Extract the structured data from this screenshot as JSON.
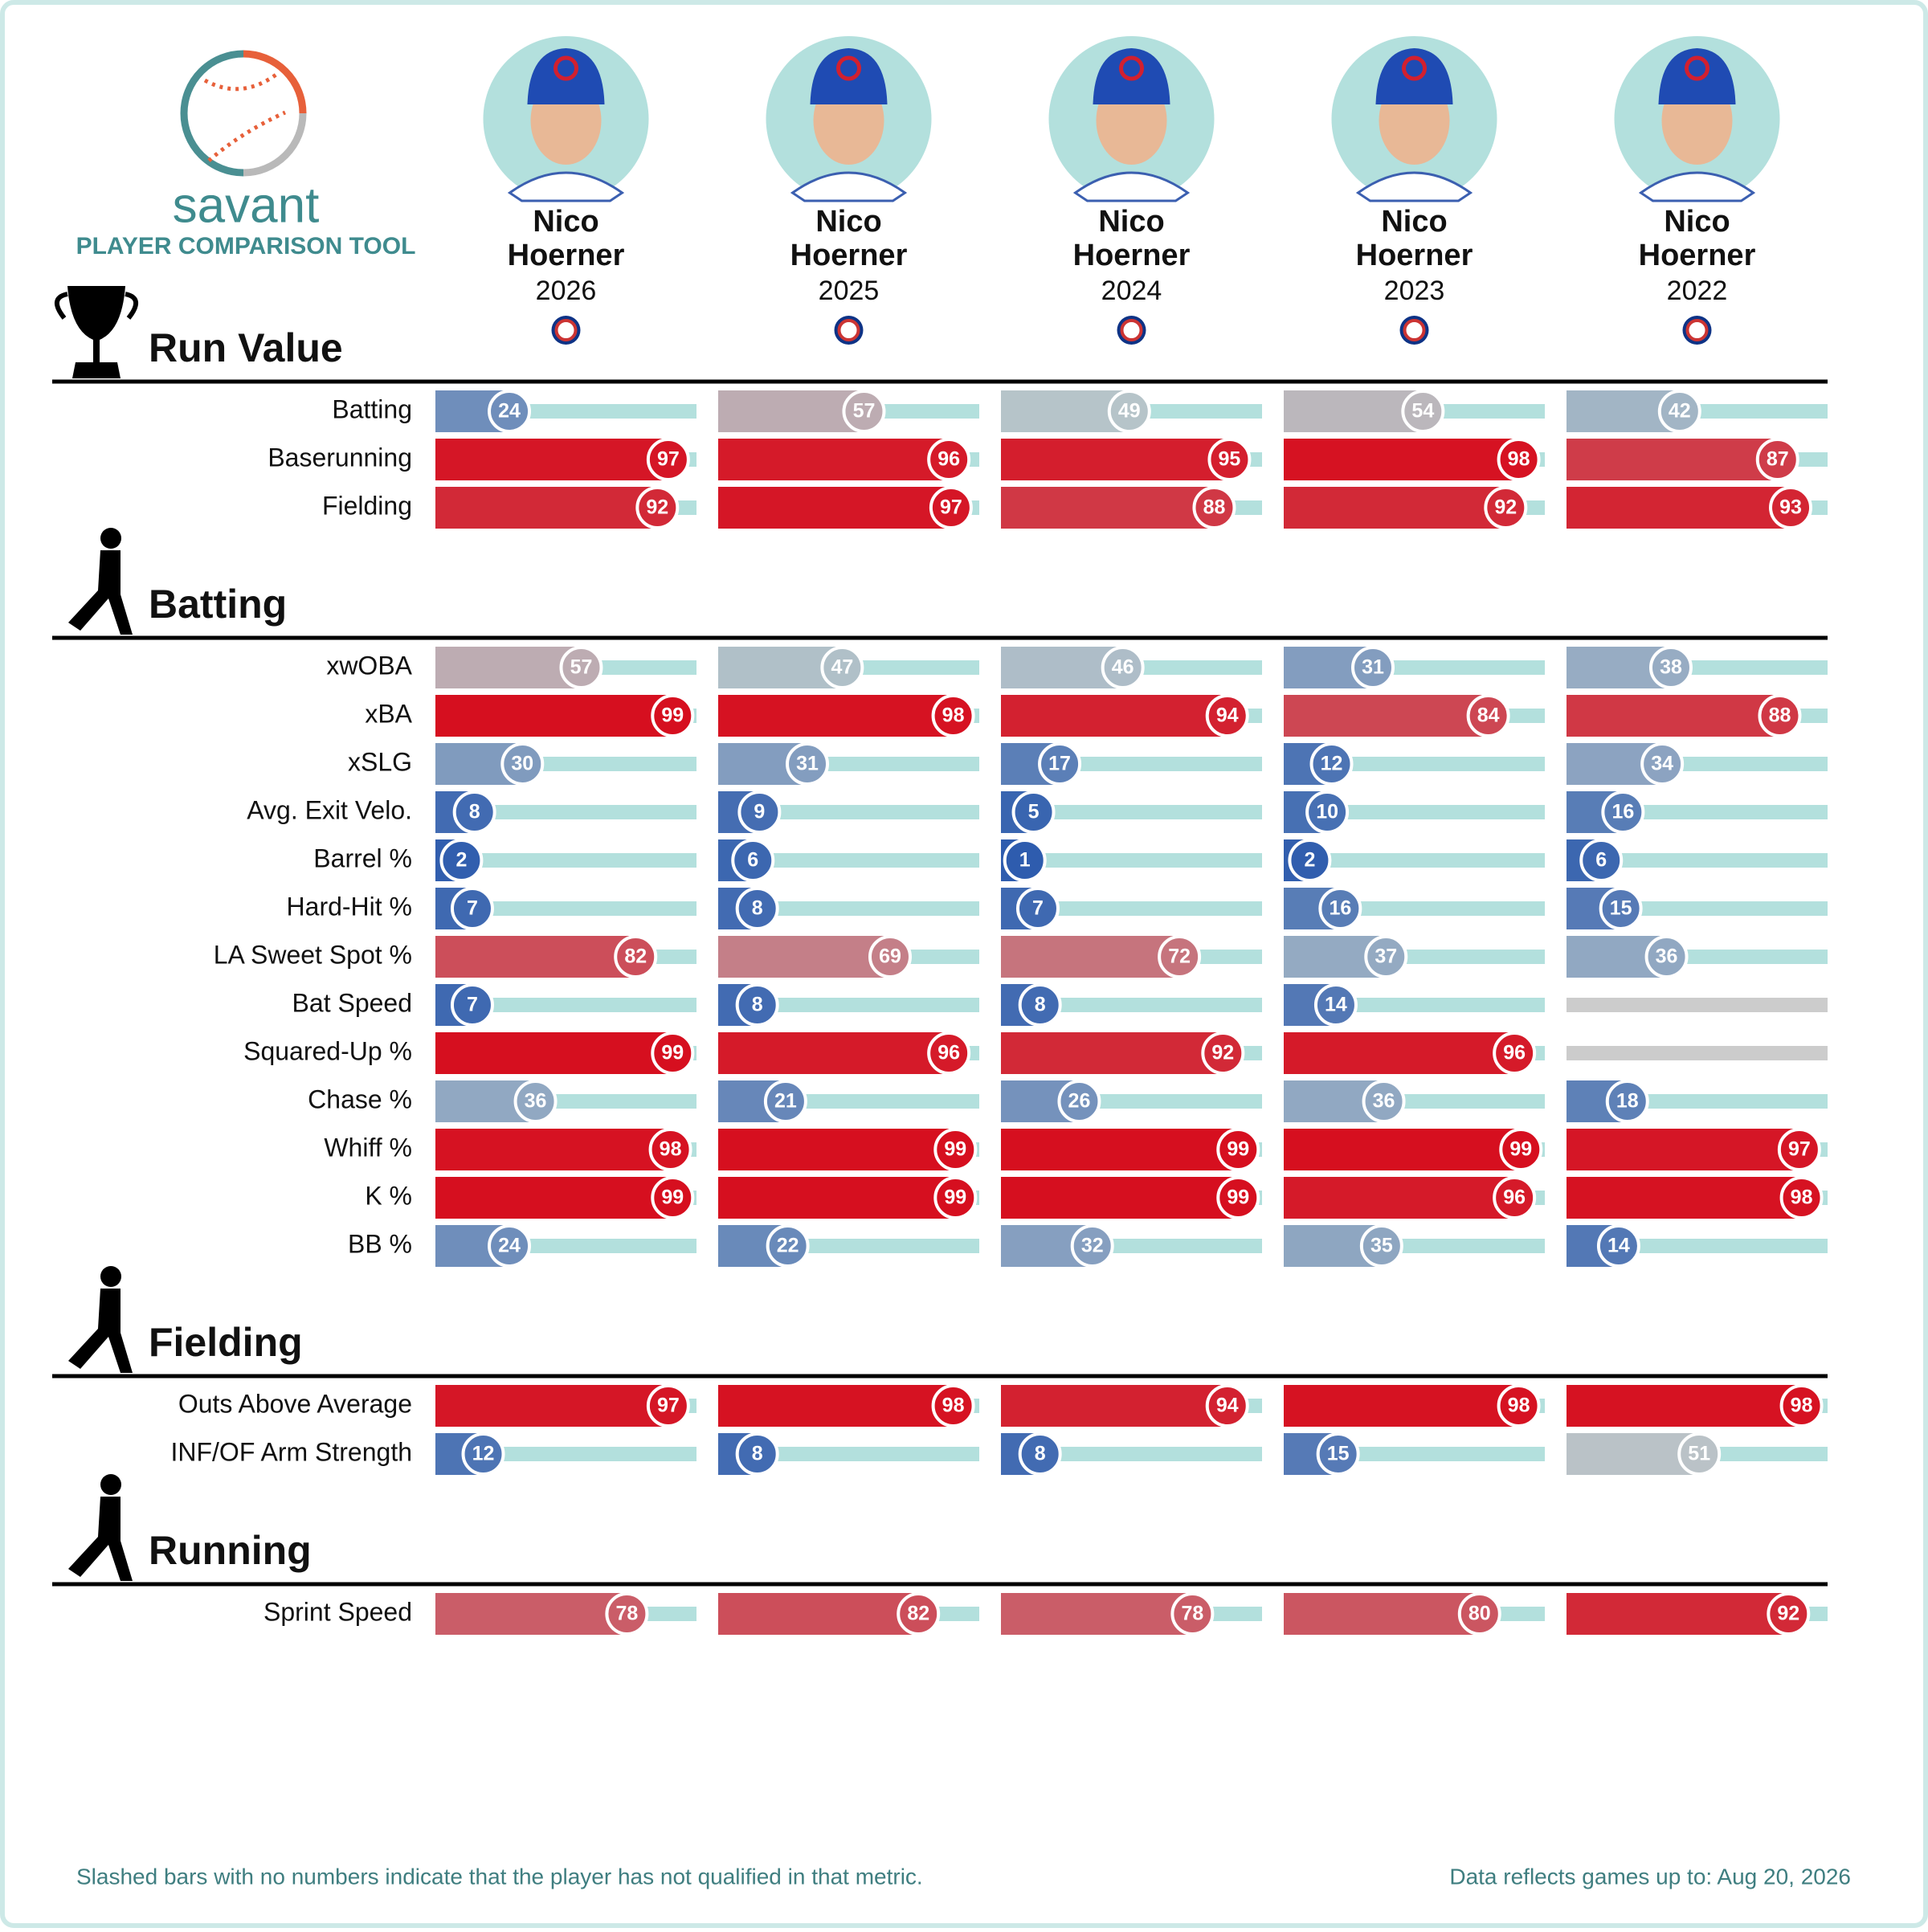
{
  "chart_data": {
    "type": "percentile",
    "title": "savant",
    "subtitle": "PLAYER COMPARISON TOOL",
    "xlim": [
      0,
      100
    ],
    "players": [
      {
        "name": "Nico Hoerner",
        "season": "2026"
      },
      {
        "name": "Nico Hoerner",
        "season": "2025"
      },
      {
        "name": "Nico Hoerner",
        "season": "2024"
      },
      {
        "name": "Nico Hoerner",
        "season": "2023"
      },
      {
        "name": "Nico Hoerner",
        "season": "2022"
      }
    ],
    "sections": [
      {
        "title": "Run Value",
        "metrics": [
          {
            "name": "Batting",
            "values": [
              24,
              57,
              49,
              54,
              42
            ]
          },
          {
            "name": "Baserunning",
            "values": [
              97,
              96,
              95,
              98,
              87
            ]
          },
          {
            "name": "Fielding",
            "values": [
              92,
              97,
              88,
              92,
              93
            ]
          }
        ]
      },
      {
        "title": "Batting",
        "metrics": [
          {
            "name": "xwOBA",
            "values": [
              57,
              47,
              46,
              31,
              38
            ]
          },
          {
            "name": "xBA",
            "values": [
              99,
              98,
              94,
              84,
              88
            ]
          },
          {
            "name": "xSLG",
            "values": [
              30,
              31,
              17,
              12,
              34
            ]
          },
          {
            "name": "Avg. Exit Velo.",
            "values": [
              8,
              9,
              5,
              10,
              16
            ]
          },
          {
            "name": "Barrel %",
            "values": [
              2,
              6,
              1,
              2,
              6
            ]
          },
          {
            "name": "Hard-Hit %",
            "values": [
              7,
              8,
              7,
              16,
              15
            ]
          },
          {
            "name": "LA Sweet Spot %",
            "values": [
              82,
              69,
              72,
              37,
              36
            ]
          },
          {
            "name": "Bat Speed",
            "values": [
              7,
              8,
              8,
              14,
              null
            ]
          },
          {
            "name": "Squared-Up %",
            "values": [
              99,
              96,
              92,
              96,
              null
            ]
          },
          {
            "name": "Chase %",
            "values": [
              36,
              21,
              26,
              36,
              18
            ]
          },
          {
            "name": "Whiff %",
            "values": [
              98,
              99,
              99,
              99,
              97
            ]
          },
          {
            "name": "K %",
            "values": [
              99,
              99,
              99,
              96,
              98
            ]
          },
          {
            "name": "BB %",
            "values": [
              24,
              22,
              32,
              35,
              14
            ]
          }
        ]
      },
      {
        "title": "Fielding",
        "metrics": [
          {
            "name": "Outs Above Average",
            "values": [
              97,
              98,
              94,
              98,
              98
            ]
          },
          {
            "name": "INF/OF Arm Strength",
            "values": [
              12,
              8,
              8,
              15,
              51
            ]
          }
        ]
      },
      {
        "title": "Running",
        "metrics": [
          {
            "name": "Sprint Speed",
            "values": [
              78,
              82,
              78,
              80,
              92
            ]
          }
        ]
      }
    ],
    "footnote": "Slashed bars with no numbers indicate that the player has not qualified in that metric.",
    "data_note": "Data reflects games up to: Aug 20, 2026"
  }
}
